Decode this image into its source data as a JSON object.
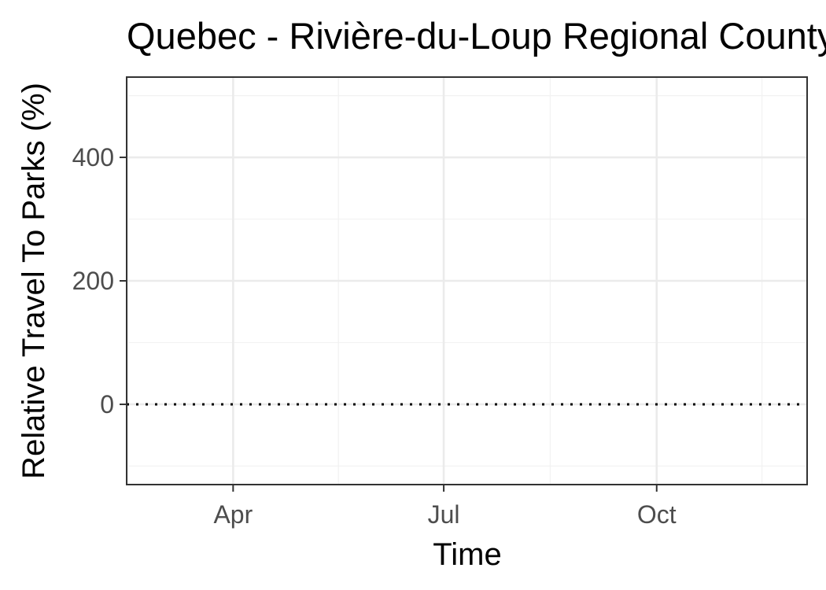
{
  "chart_data": {
    "type": "line",
    "title": "Quebec - Rivière-du-Loup Regional County Municipality",
    "xlabel": "Time",
    "ylabel": "Relative Travel To Parks (%)",
    "x_ticks": [
      "Apr",
      "Jul",
      "Oct"
    ],
    "y_ticks": [
      0,
      200,
      400
    ],
    "xlim": [
      "2020-02-15",
      "2020-12-05"
    ],
    "ylim": [
      -130,
      530
    ],
    "grid": true,
    "reference_line": {
      "y": 0,
      "style": "dotted"
    },
    "series": []
  },
  "colors": {
    "panel_border": "#333333",
    "grid_major": "#ebebeb",
    "grid_minor": "#f2f2f2",
    "reference_line": "#000000"
  }
}
